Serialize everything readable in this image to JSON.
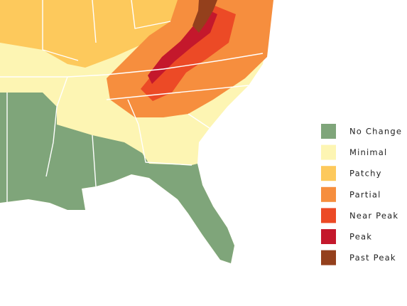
{
  "legend": {
    "items": [
      {
        "label": "No Change",
        "color": "#7fa57a"
      },
      {
        "label": "Minimal",
        "color": "#fdf5b3"
      },
      {
        "label": "Patchy",
        "color": "#fdc95c"
      },
      {
        "label": "Partial",
        "color": "#f68e3e"
      },
      {
        "label": "Near Peak",
        "color": "#ec4a26"
      },
      {
        "label": "Peak",
        "color": "#c4182c"
      },
      {
        "label": "Past Peak",
        "color": "#94401c"
      }
    ]
  }
}
